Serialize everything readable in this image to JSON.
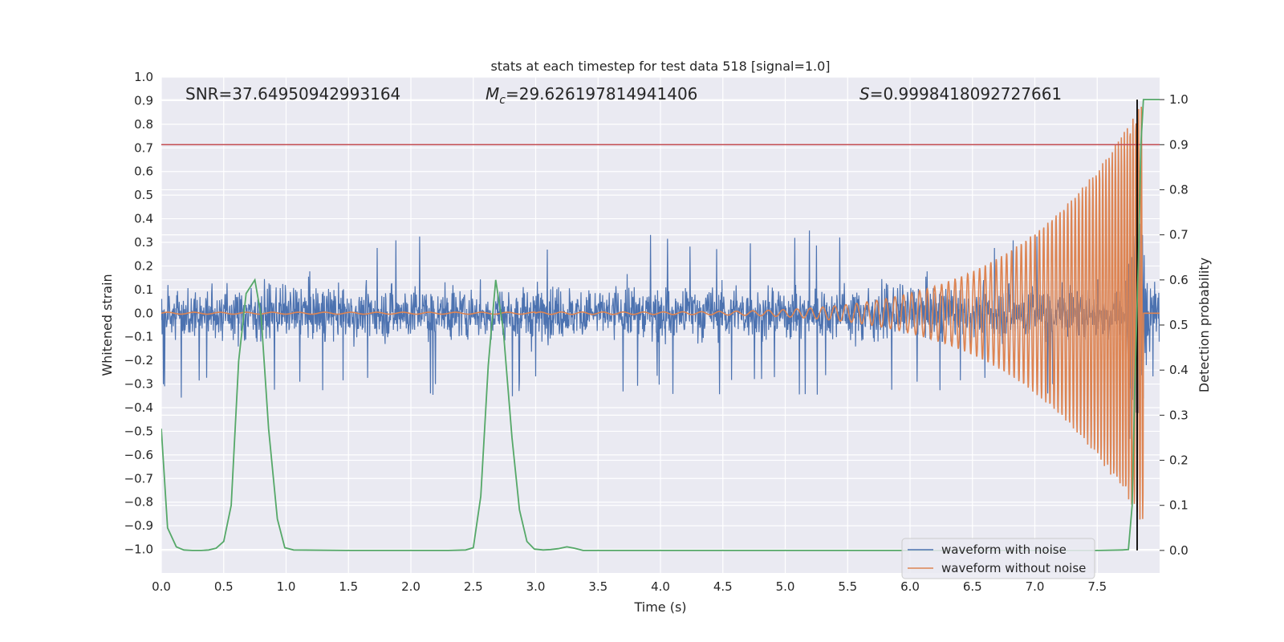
{
  "chart_data": {
    "type": "line",
    "title": "stats at each timestep for test data 518 [signal=1.0]",
    "xlabel": "Time (s)",
    "ylabel": "Whitened strain",
    "ylabel_right": "Detection probability",
    "xlim": [
      0.0,
      8.0
    ],
    "ylim": [
      -1.1,
      1.0
    ],
    "ylim_right": [
      -0.05,
      1.05
    ],
    "x_ticks": [
      "0.0",
      "0.5",
      "1.0",
      "1.5",
      "2.0",
      "2.5",
      "3.0",
      "3.5",
      "4.0",
      "4.5",
      "5.0",
      "5.5",
      "6.0",
      "6.5",
      "7.0",
      "7.5"
    ],
    "y_ticks": [
      "1.0",
      "0.9",
      "0.8",
      "0.7",
      "0.6",
      "0.5",
      "0.4",
      "0.3",
      "0.2",
      "0.1",
      "0.0",
      "−0.1",
      "−0.2",
      "−0.3",
      "−0.4",
      "−0.5",
      "−0.6",
      "−0.7",
      "−0.8",
      "−0.9",
      "−1.0"
    ],
    "y_ticks_right": [
      "1.0",
      "0.9",
      "0.8",
      "0.7",
      "0.6",
      "0.5",
      "0.4",
      "0.3",
      "0.2",
      "0.1",
      "0.0"
    ],
    "grid": true,
    "legend_placement": "lower-right",
    "annotations": {
      "snr_label": "SNR=37.64950942993164",
      "mc_symbol": "M",
      "mc_sub": "c",
      "mc_value": "=29.626197814941406",
      "s_symbol": "S",
      "s_value": "=0.9998418092727661"
    },
    "threshold_line_right": 0.9,
    "event_time": 7.82,
    "series": [
      {
        "name": "waveform with noise",
        "color": "#4c72b0",
        "axis": "left",
        "description": "noisy whitened strain",
        "typical_amplitude": 0.17,
        "peak_max": 0.52,
        "peak_min": -1.0,
        "x_range": [
          0.0,
          8.0
        ]
      },
      {
        "name": "waveform without noise",
        "color": "#dd8452",
        "axis": "left",
        "chirp_start": 3.0,
        "chirp_end": 7.87,
        "start_amplitude": 0.005,
        "end_amplitude": 0.9
      },
      {
        "color": "#55a868",
        "axis": "right",
        "x": [
          0.0,
          0.05,
          0.12,
          0.18,
          0.25,
          0.32,
          0.38,
          0.44,
          0.5,
          0.56,
          0.62,
          0.68,
          0.75,
          0.8,
          0.86,
          0.93,
          0.99,
          1.06,
          1.5,
          2.0,
          2.3,
          2.44,
          2.5,
          2.56,
          2.62,
          2.68,
          2.74,
          2.81,
          2.87,
          2.93,
          2.99,
          3.06,
          3.12,
          3.18,
          3.25,
          3.31,
          3.38,
          3.5,
          4.0,
          5.0,
          6.0,
          7.0,
          7.5,
          7.7,
          7.75,
          7.78,
          7.8,
          7.83,
          7.85,
          7.87,
          7.9,
          8.0
        ],
        "y": [
          0.27,
          0.05,
          0.008,
          0.001,
          0.0,
          0.0,
          0.001,
          0.005,
          0.02,
          0.1,
          0.42,
          0.57,
          0.6,
          0.52,
          0.27,
          0.07,
          0.006,
          0.001,
          0.0,
          0.0,
          0.0,
          0.001,
          0.006,
          0.12,
          0.41,
          0.6,
          0.49,
          0.25,
          0.09,
          0.02,
          0.003,
          0.001,
          0.002,
          0.004,
          0.008,
          0.005,
          0.0,
          0.0,
          0.0,
          0.0,
          0.0,
          0.0,
          0.0,
          0.001,
          0.002,
          0.1,
          0.35,
          0.65,
          0.9,
          1.0,
          1.0,
          1.0
        ]
      }
    ]
  }
}
